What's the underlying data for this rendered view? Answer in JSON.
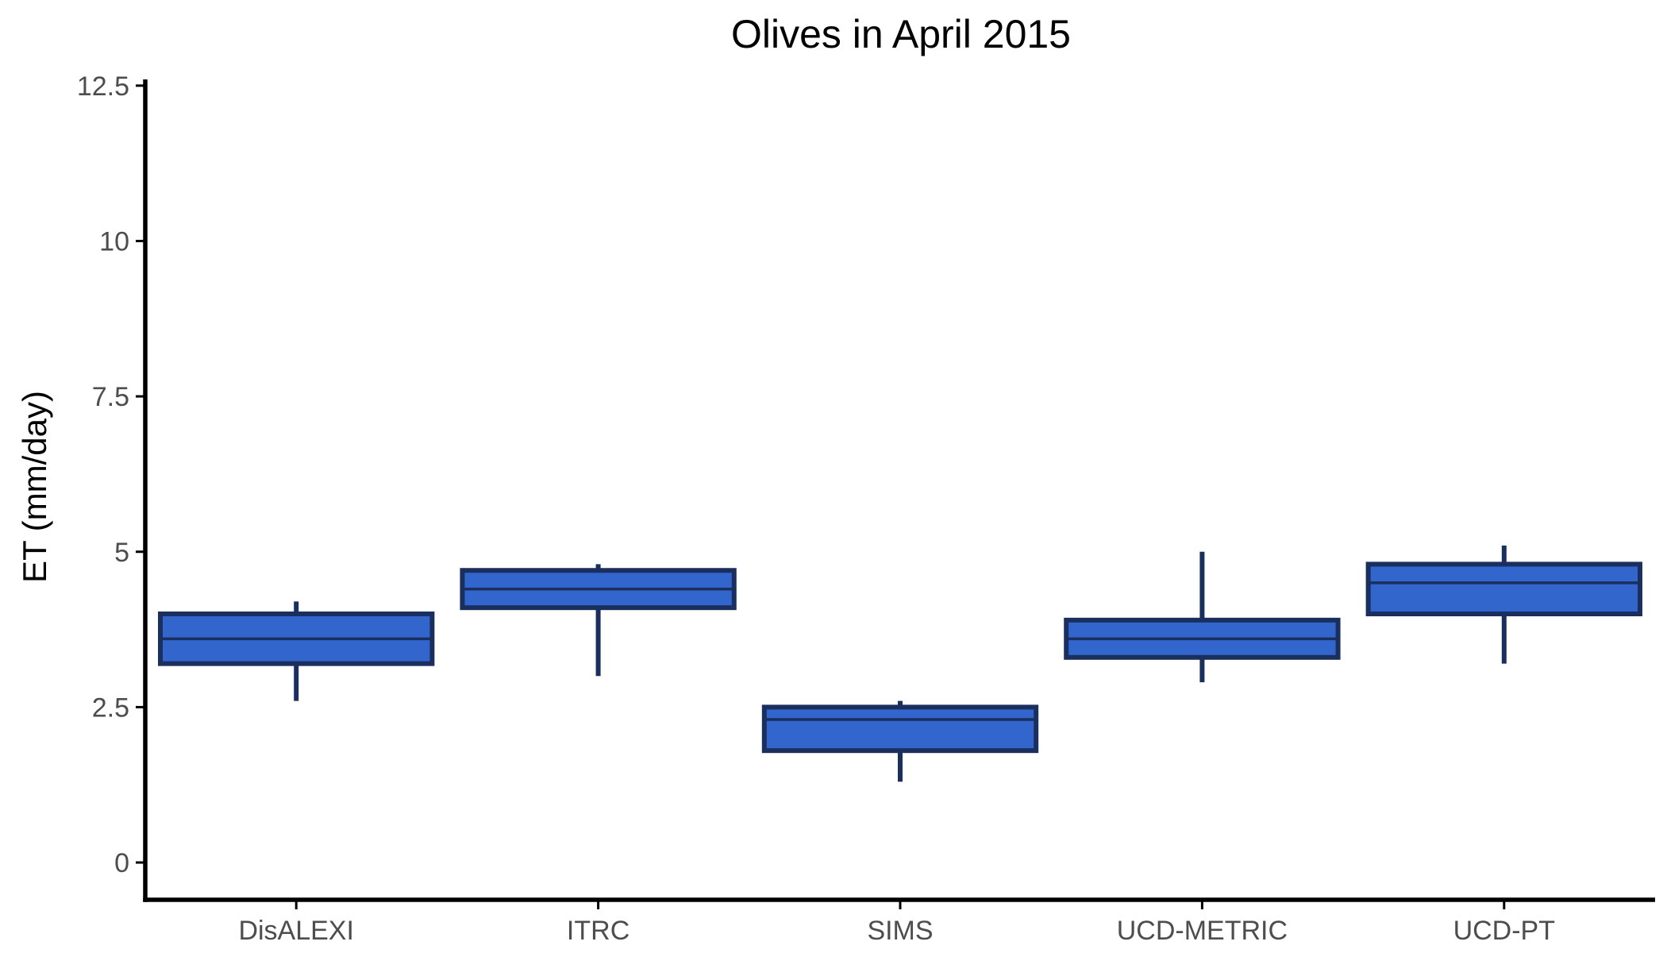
{
  "chart_data": {
    "type": "boxplot",
    "title": "Olives in April 2015",
    "xlabel": "",
    "ylabel": "ET (mm/day)",
    "ylim": [
      -0.6,
      12.6
    ],
    "yticks": [
      0,
      2.5,
      5,
      7.5,
      10,
      12.5
    ],
    "ytick_labels": [
      "0",
      "2.5",
      "5",
      "7.5",
      "10",
      "12.5"
    ],
    "grid": false,
    "categories": [
      "DisALEXI",
      "ITRC",
      "SIMS",
      "UCD-METRIC",
      "UCD-PT"
    ],
    "boxes": [
      {
        "min": 2.6,
        "q1": 3.2,
        "median": 3.6,
        "q3": 4.0,
        "max": 4.2
      },
      {
        "min": 3.0,
        "q1": 4.1,
        "median": 4.4,
        "q3": 4.7,
        "max": 4.8
      },
      {
        "min": 1.3,
        "q1": 1.8,
        "median": 2.3,
        "q3": 2.5,
        "max": 2.6
      },
      {
        "min": 2.9,
        "q1": 3.3,
        "median": 3.6,
        "q3": 3.9,
        "max": 5.0
      },
      {
        "min": 3.2,
        "q1": 4.0,
        "median": 4.5,
        "q3": 4.8,
        "max": 5.1
      }
    ],
    "colors": {
      "box_fill": "#3366cc",
      "box_outline": "#1a2f5e"
    }
  }
}
